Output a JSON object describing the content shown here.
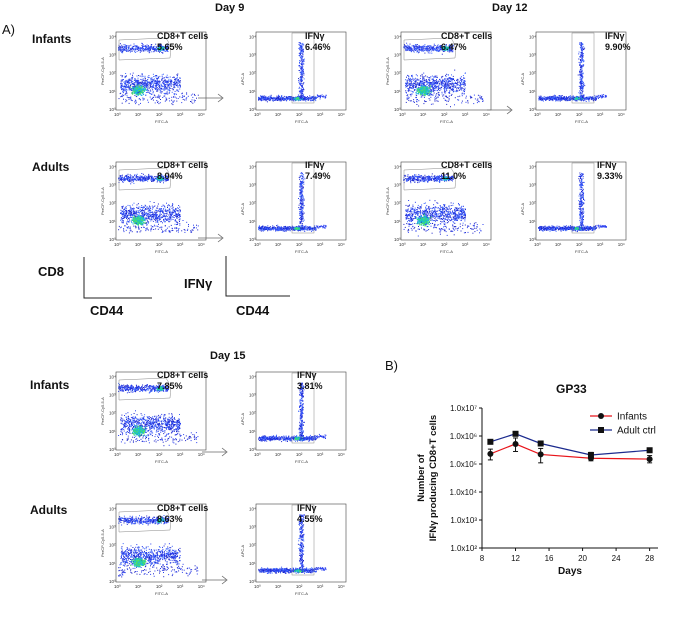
{
  "panel_a_label": "A)",
  "panel_b_label": "B)",
  "days": {
    "day9": "Day 9",
    "day12": "Day 12",
    "day15": "Day 15"
  },
  "rows": {
    "infants": "Infants",
    "adults": "Adults"
  },
  "gates": {
    "cd8_title": "CD8+T cells",
    "ifn_title": "IFNγ",
    "d9_inf_cd8": "5.65%",
    "d9_inf_ifn": "6.46%",
    "d9_adu_cd8": "8.04%",
    "d9_adu_ifn": "7.49%",
    "d12_inf_cd8": "6.47%",
    "d12_inf_ifn": "9.90%",
    "d12_adu_cd8": "11.0%",
    "d12_adu_ifn": "9.33%",
    "d15_inf_cd8": "7.85%",
    "d15_inf_ifn": "3.81%",
    "d15_adu_cd8": "8.63%",
    "d15_adu_ifn": "4.55%"
  },
  "axes": {
    "cd8_axis": "CD8",
    "ifn_axis": "IFNγ",
    "cd44_axis": "CD44",
    "fitc": "FITC-A",
    "percp": "PerCP-Cy5-5-A",
    "apc": "APC-A"
  },
  "ticks": [
    "10⁰",
    "10¹",
    "10²",
    "10³",
    "10⁴"
  ],
  "chart_data": {
    "type": "line",
    "title": "GP33",
    "xlabel": "Days",
    "ylabel": "Number of IFNγ producing CD8+T cells",
    "xlim": [
      8,
      29
    ],
    "ylim": [
      10000000,
      100
    ],
    "yscale": "log",
    "x_ticks": [
      "8",
      "12",
      "16",
      "20",
      "24",
      "28"
    ],
    "y_ticks": [
      "1.0x10⁷",
      "1.0x10⁶",
      "1.0x10⁵",
      "1.0x10⁴",
      "1.0x10³",
      "1.0x10²"
    ],
    "legend": [
      "Infants",
      "Adult ctrl"
    ],
    "series": [
      {
        "name": "Infants",
        "color": "#e8141a",
        "marker": "circle",
        "x": [
          9,
          12,
          15,
          21,
          28
        ],
        "y": [
          230000,
          520000,
          220000,
          160000,
          150000
        ],
        "err_low": [
          140000,
          280000,
          110000,
          130000,
          110000
        ],
        "err_high": [
          340000,
          850000,
          360000,
          200000,
          200000
        ]
      },
      {
        "name": "Adult ctrl",
        "color": "#1b2a8e",
        "marker": "square",
        "x": [
          9,
          12,
          15,
          21,
          28
        ],
        "y": [
          620000,
          1200000,
          540000,
          210000,
          310000
        ],
        "err_low": [
          560000,
          1050000,
          480000,
          170000,
          270000
        ],
        "err_high": [
          700000,
          1350000,
          600000,
          260000,
          360000
        ]
      }
    ]
  }
}
